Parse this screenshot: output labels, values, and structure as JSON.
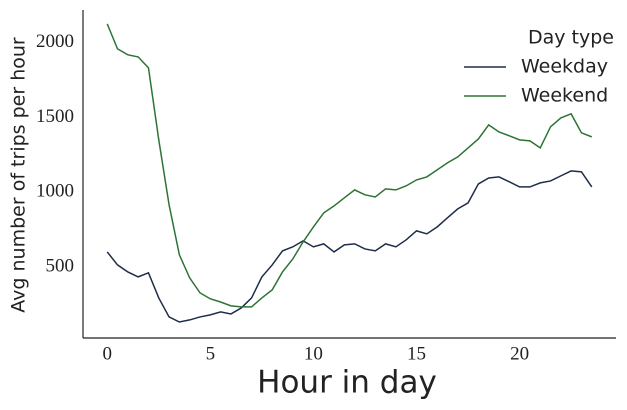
{
  "chart_data": {
    "type": "line",
    "xlabel": "Hour in day",
    "ylabel": "Avg number of trips per hour",
    "x": [
      0,
      0.5,
      1,
      1.5,
      2,
      2.5,
      3,
      3.5,
      4,
      4.5,
      5,
      5.5,
      6,
      6.5,
      7,
      7.5,
      8,
      8.5,
      9,
      9.5,
      10,
      10.5,
      11,
      11.5,
      12,
      12.5,
      13,
      13.5,
      14,
      14.5,
      15,
      15.5,
      16,
      16.5,
      17,
      17.5,
      18,
      18.5,
      19,
      19.5,
      20,
      20.5,
      21,
      21.5,
      22,
      22.5,
      23,
      23.5
    ],
    "series": [
      {
        "name": "Weekday",
        "color": "#1f2d4a",
        "values": [
          601,
          514,
          467,
          434,
          461,
          293,
          166,
          132,
          146,
          166,
          180,
          200,
          186,
          226,
          293,
          434,
          514,
          608,
          635,
          675,
          635,
          655,
          601,
          648,
          655,
          621,
          608,
          655,
          635,
          682,
          742,
          722,
          768,
          829,
          889,
          929,
          1056,
          1096,
          1103,
          1070,
          1036,
          1036,
          1063,
          1076,
          1110,
          1143,
          1137,
          1036
        ]
      },
      {
        "name": "Weekend",
        "color": "#2e7335",
        "values": [
          2127,
          1960,
          1920,
          1906,
          1833,
          1351,
          916,
          581,
          427,
          327,
          287,
          266,
          240,
          233,
          233,
          293,
          347,
          467,
          554,
          668,
          768,
          862,
          909,
          963,
          1016,
          983,
          969,
          1023,
          1016,
          1043,
          1083,
          1103,
          1150,
          1197,
          1237,
          1297,
          1357,
          1451,
          1404,
          1378,
          1351,
          1344,
          1297,
          1438,
          1498,
          1525,
          1398,
          1371
        ]
      }
    ],
    "legend_title": "Day type",
    "legend_position": "upper right",
    "xlim": [
      -1.175,
      24.675
    ],
    "ylim": [
      25,
      2220
    ],
    "xticks": [
      0,
      5,
      10,
      15,
      20
    ],
    "yticks": [
      500,
      1000,
      1500,
      2000
    ]
  }
}
